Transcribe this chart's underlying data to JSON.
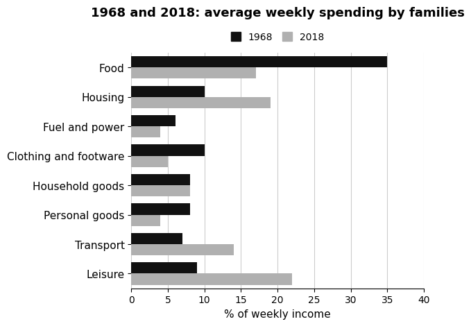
{
  "title": "1968 and 2018: average weekly spending by families",
  "xlabel": "% of weekly income",
  "categories": [
    "Food",
    "Housing",
    "Fuel and power",
    "Clothing and footware",
    "Household goods",
    "Personal goods",
    "Transport",
    "Leisure"
  ],
  "values_1968": [
    35,
    10,
    6,
    10,
    8,
    8,
    7,
    9
  ],
  "values_2018": [
    17,
    19,
    4,
    5,
    8,
    4,
    14,
    22
  ],
  "color_1968": "#111111",
  "color_2018": "#b0b0b0",
  "xlim": [
    0,
    40
  ],
  "xticks": [
    0,
    5,
    10,
    15,
    20,
    25,
    30,
    35,
    40
  ],
  "bar_height": 0.38,
  "legend_labels": [
    "1968",
    "2018"
  ],
  "grid_color": "#cccccc",
  "background_color": "#ffffff",
  "title_fontsize": 13,
  "label_fontsize": 11,
  "tick_fontsize": 10
}
